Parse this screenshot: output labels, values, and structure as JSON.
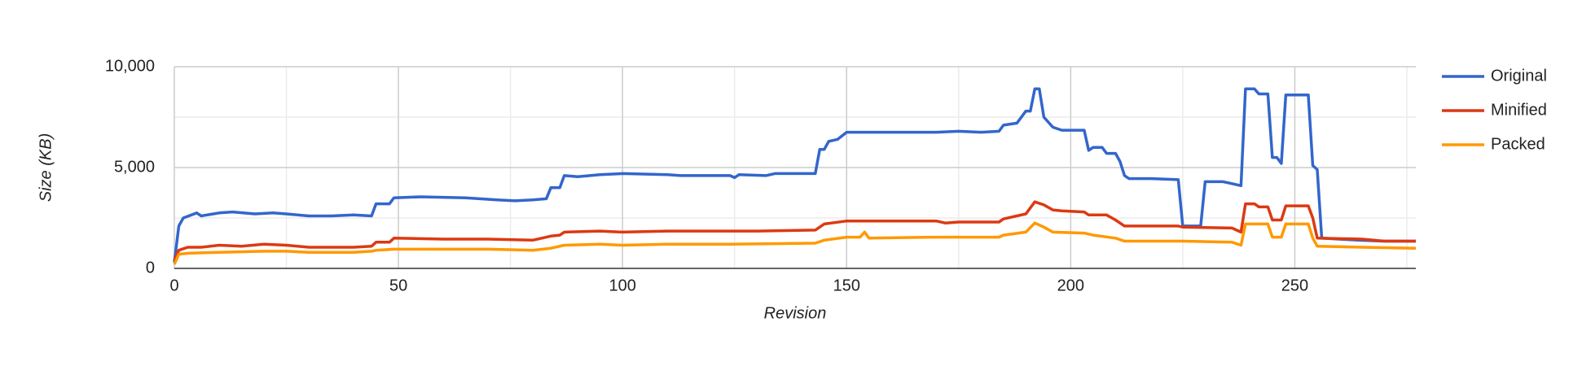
{
  "chart_data": {
    "type": "line",
    "x_label": "Revision",
    "y_label": "Size (KB)",
    "xlim": [
      0,
      277
    ],
    "xticks": [
      0,
      50,
      100,
      150,
      200,
      250
    ],
    "x_minor_grid": [
      25,
      75,
      125,
      175,
      225,
      275
    ],
    "ylim": [
      0,
      10000
    ],
    "yticks": [
      0,
      {
        "value": 5000,
        "label": "5,000"
      },
      {
        "value": 10000,
        "label": "10,000"
      }
    ],
    "y_minor_grid": [
      2500,
      7500
    ],
    "grid": true,
    "legend": "right",
    "series": [
      {
        "name": "Original",
        "color": "#3366cc",
        "x": [
          0,
          1,
          2,
          5,
          6,
          10,
          13,
          18,
          22,
          25,
          30,
          35,
          40,
          44,
          45,
          48,
          49,
          55,
          65,
          72,
          76,
          80,
          83,
          84,
          86,
          87,
          90,
          95,
          100,
          110,
          113,
          124,
          125,
          126,
          132,
          134,
          143,
          144,
          145,
          146,
          148,
          150,
          170,
          175,
          180,
          184,
          185,
          188,
          190,
          191,
          192,
          193,
          194,
          196,
          198,
          203,
          204,
          205,
          207,
          208,
          210,
          211,
          212,
          213,
          218,
          224,
          225,
          229,
          230,
          234,
          236,
          238,
          239,
          241,
          242,
          244,
          245,
          246,
          247,
          248,
          253,
          254,
          255,
          256,
          264,
          270,
          277
        ],
        "values": [
          300,
          2100,
          2500,
          2750,
          2600,
          2750,
          2800,
          2700,
          2750,
          2700,
          2600,
          2600,
          2650,
          2600,
          3200,
          3200,
          3500,
          3550,
          3500,
          3400,
          3350,
          3400,
          3450,
          4000,
          4000,
          4600,
          4550,
          4650,
          4700,
          4650,
          4600,
          4600,
          4500,
          4650,
          4600,
          4700,
          4700,
          5900,
          5900,
          6300,
          6400,
          6750,
          6750,
          6800,
          6750,
          6800,
          7100,
          7200,
          7800,
          7800,
          8900,
          8900,
          7500,
          7000,
          6850,
          6850,
          5850,
          6000,
          6000,
          5700,
          5700,
          5300,
          4600,
          4450,
          4450,
          4400,
          2100,
          2100,
          4300,
          4300,
          4200,
          4100,
          8900,
          8900,
          8650,
          8650,
          5500,
          5500,
          5200,
          8600,
          8600,
          5100,
          4900,
          1500,
          1400,
          1350,
          1350
        ]
      },
      {
        "name": "Minified",
        "color": "#dc3912",
        "x": [
          0,
          1,
          3,
          6,
          10,
          15,
          20,
          25,
          30,
          40,
          44,
          45,
          48,
          49,
          60,
          70,
          80,
          84,
          86,
          87,
          95,
          100,
          110,
          124,
          130,
          143,
          145,
          150,
          170,
          172,
          175,
          180,
          184,
          185,
          190,
          192,
          194,
          196,
          198,
          203,
          204,
          208,
          210,
          212,
          224,
          225,
          236,
          238,
          239,
          241,
          242,
          244,
          245,
          247,
          248,
          253,
          254,
          255,
          265,
          270,
          277
        ],
        "values": [
          400,
          900,
          1050,
          1050,
          1150,
          1100,
          1200,
          1150,
          1050,
          1050,
          1100,
          1300,
          1300,
          1500,
          1450,
          1450,
          1400,
          1600,
          1650,
          1800,
          1850,
          1800,
          1850,
          1850,
          1850,
          1900,
          2200,
          2350,
          2350,
          2250,
          2300,
          2300,
          2300,
          2450,
          2700,
          3300,
          3150,
          2900,
          2850,
          2800,
          2650,
          2650,
          2400,
          2100,
          2100,
          2050,
          2000,
          1800,
          3200,
          3200,
          3050,
          3050,
          2400,
          2400,
          3100,
          3100,
          2500,
          1500,
          1450,
          1350,
          1350
        ]
      },
      {
        "name": "Packed",
        "color": "#ff9900",
        "x": [
          0,
          1,
          3,
          10,
          20,
          25,
          30,
          40,
          44,
          45,
          49,
          60,
          70,
          80,
          84,
          87,
          95,
          100,
          110,
          124,
          143,
          145,
          150,
          153,
          154,
          155,
          170,
          175,
          180,
          184,
          185,
          190,
          192,
          194,
          196,
          203,
          205,
          210,
          212,
          225,
          236,
          238,
          239,
          244,
          245,
          247,
          248,
          253,
          254,
          255,
          265,
          277
        ],
        "values": [
          200,
          700,
          750,
          800,
          850,
          850,
          800,
          800,
          850,
          900,
          950,
          950,
          950,
          900,
          1000,
          1150,
          1200,
          1150,
          1200,
          1200,
          1250,
          1400,
          1550,
          1550,
          1800,
          1500,
          1550,
          1550,
          1550,
          1550,
          1650,
          1800,
          2250,
          2050,
          1800,
          1750,
          1650,
          1500,
          1350,
          1350,
          1300,
          1150,
          2200,
          2200,
          1550,
          1550,
          2200,
          2200,
          1500,
          1100,
          1050,
          1000
        ]
      }
    ]
  }
}
